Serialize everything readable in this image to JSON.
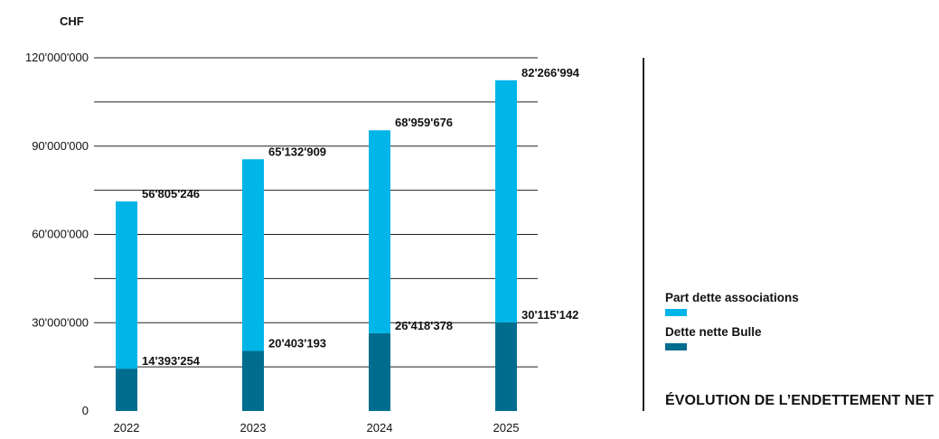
{
  "chart_data": {
    "type": "bar",
    "stacked": true,
    "title": "ÉVOLUTION DE L’ENDETTEMENT NET",
    "unit_label": "CHF",
    "categories": [
      "2022",
      "2023",
      "2024",
      "2025"
    ],
    "ylim": [
      0,
      120000000
    ],
    "yticks": [
      0,
      30000000,
      60000000,
      90000000,
      120000000
    ],
    "ytick_labels": [
      "0",
      "30'000'000",
      "60'000'000",
      "90'000'000",
      "120'000'000"
    ],
    "grid": true,
    "legend_position": "right",
    "series": [
      {
        "name": "Dette nette Bulle",
        "color": "#006d8f",
        "values": [
          14393254,
          20403193,
          26418378,
          30115142
        ],
        "labels": [
          "14'393'254",
          "20'403'193",
          "26'418'378",
          "30'115'142"
        ]
      },
      {
        "name": "Part dette associations",
        "color": "#00b5e8",
        "values": [
          56805246,
          65132909,
          68959676,
          82266994
        ],
        "labels": [
          "56'805'246",
          "65'132'909",
          "68'959'676",
          "82'266'994"
        ]
      }
    ]
  },
  "legend": {
    "items": [
      {
        "label": "Part dette associations",
        "color": "#00b5e8"
      },
      {
        "label": "Dette nette Bulle",
        "color": "#006d8f"
      }
    ]
  }
}
